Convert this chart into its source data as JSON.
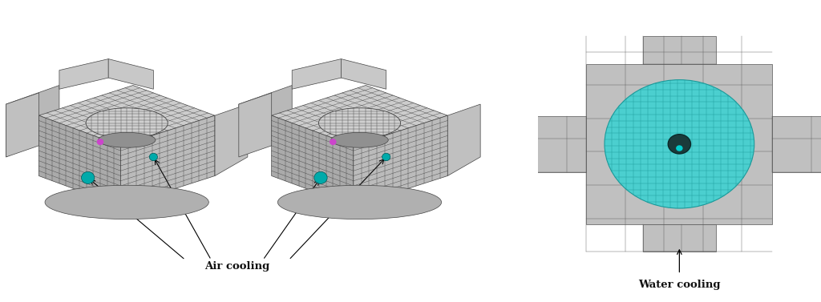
{
  "figure_width": 10.24,
  "figure_height": 3.77,
  "dpi": 100,
  "background_color": "#ffffff",
  "label_air_cooling": "Air cooling",
  "label_water_cooling": "Water cooling",
  "label_fontsize": 9.5,
  "label_fontfamily": "DejaVu Serif",
  "text_color": "#111111",
  "teal_color": [
    64,
    200,
    200
  ],
  "cyan_dot": "#00aaaa",
  "magenta_dot": "#cc44cc",
  "mesh_base_gray": 180,
  "mesh_dark_gray": 80,
  "cross_shape_gray": 190
}
